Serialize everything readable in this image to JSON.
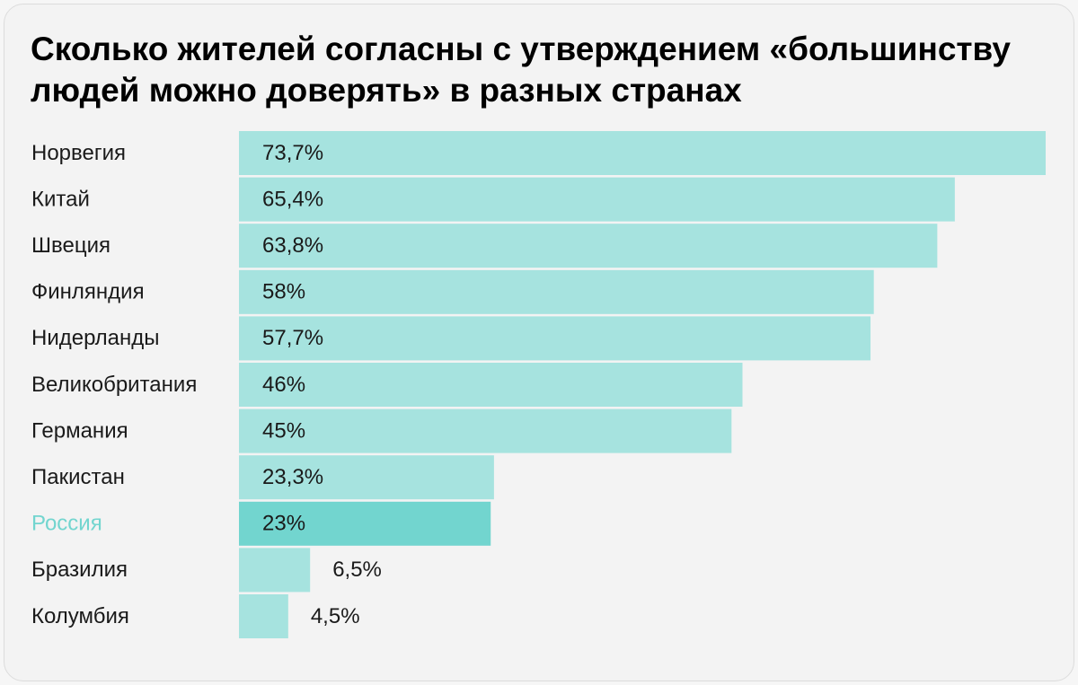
{
  "colors": {
    "bar": "#a6e3df",
    "bar_highlight": "#72d5cf",
    "highlight_label": "#72d5cf",
    "label": "#1a1a1a",
    "background": "#f3f3f3"
  },
  "chart_data": {
    "type": "bar",
    "orientation": "horizontal",
    "title": "Сколько жителей согласны с утверждением «большинству людей можно доверять» в разных странах",
    "categories": [
      "Норвегия",
      "Китай",
      "Швеция",
      "Финляндия",
      "Нидерланды",
      "Великобритания",
      "Германия",
      "Пакистан",
      "Россия",
      "Бразилия",
      "Колумбия"
    ],
    "values": [
      73.7,
      65.4,
      63.8,
      58,
      57.7,
      46,
      45,
      23.3,
      23,
      6.5,
      4.5
    ],
    "value_labels": [
      "73,7%",
      "65,4%",
      "63,8%",
      "58%",
      "57,7%",
      "46%",
      "45%",
      "23,3%",
      "23%",
      "6,5%",
      "4,5%"
    ],
    "highlight": "Россия",
    "unit": "%",
    "xlim": [
      0,
      73.7
    ],
    "grid": false,
    "legend": "none"
  }
}
